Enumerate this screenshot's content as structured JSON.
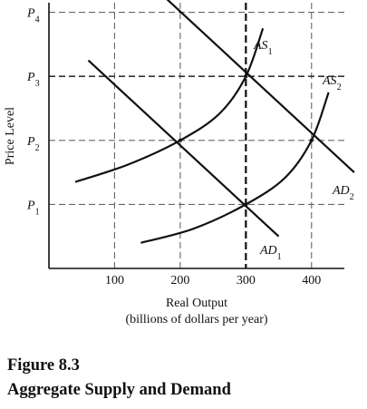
{
  "chart_data": {
    "type": "line",
    "xlabel": "Real Output",
    "xlabel_sub": "(billions of dollars per year)",
    "ylabel": "Price Level",
    "x_ticks": [
      100,
      200,
      300,
      400
    ],
    "x_tick_labels": [
      "100",
      "200",
      "300",
      "400"
    ],
    "xlim": [
      0,
      450
    ],
    "y_levels": [
      {
        "base": "P",
        "sub": "1",
        "value": 1
      },
      {
        "base": "P",
        "sub": "2",
        "value": 2
      },
      {
        "base": "P",
        "sub": "3",
        "value": 3
      },
      {
        "base": "P",
        "sub": "4",
        "value": 4
      }
    ],
    "ylim": [
      0,
      4.15
    ],
    "grid": "dashed",
    "series": [
      {
        "name": "AS1",
        "label_base": "AS",
        "label_sub": "1",
        "kind": "curve",
        "x": [
          40,
          120,
          200,
          260,
          300,
          326
        ],
        "y": [
          1.35,
          1.62,
          2.0,
          2.42,
          3.0,
          3.75
        ]
      },
      {
        "name": "AS2",
        "label_base": "AS",
        "label_sub": "2",
        "kind": "curve",
        "x": [
          140,
          220,
          300,
          360,
          400,
          426
        ],
        "y": [
          0.4,
          0.62,
          1.0,
          1.42,
          2.0,
          2.75
        ]
      },
      {
        "name": "AD1",
        "label_base": "AD",
        "label_sub": "1",
        "kind": "line",
        "x": [
          60,
          350
        ],
        "y": [
          3.25,
          0.5
        ]
      },
      {
        "name": "AD2",
        "label_base": "AD",
        "label_sub": "2",
        "kind": "line",
        "x": [
          175,
          465
        ],
        "y": [
          4.25,
          1.5
        ]
      }
    ],
    "emphasis_line": {
      "x": 300,
      "style": "bold-dashed"
    }
  },
  "caption": {
    "figure": "Figure 8.3",
    "title": "Aggregate Supply and Demand"
  }
}
